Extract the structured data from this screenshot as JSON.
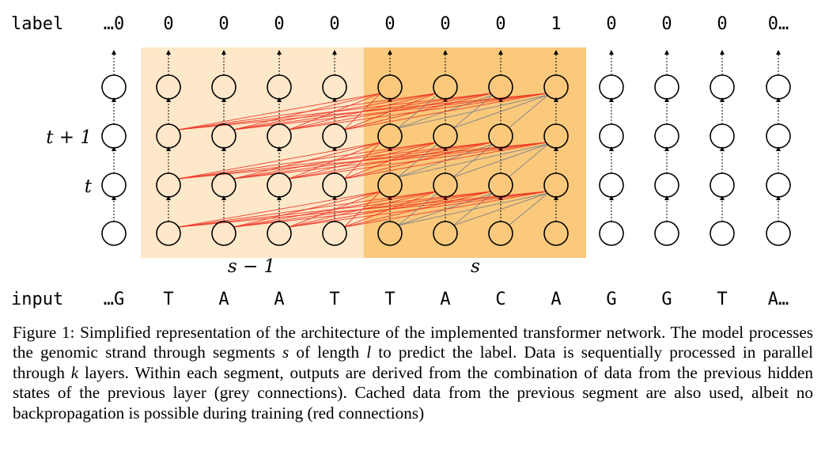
{
  "diagram": {
    "label_row_title": "label",
    "input_row_title": "input",
    "labels": [
      "…0",
      "0",
      "0",
      "0",
      "0",
      "0",
      "0",
      "0",
      "1",
      "0",
      "0",
      "0",
      "0…"
    ],
    "inputs": [
      "…G",
      "T",
      "A",
      "A",
      "T",
      "T",
      "A",
      "C",
      "A",
      "G",
      "G",
      "T",
      "A…"
    ],
    "layer_label_t1": "t + 1",
    "layer_label_t": "t",
    "segment_prev_label": "s − 1",
    "segment_curr_label": "s",
    "colors": {
      "segment_prev_fill": "#fde8c9",
      "segment_curr_fill": "#fbc97c",
      "red_connection": "#ee3322",
      "grey_connection": "#888888"
    }
  },
  "caption": {
    "figure_label": "Figure 1:",
    "text_1": "Simplified representation of the architecture of the implemented transformer network. The model processes the genomic strand through segments",
    "var_s": "s",
    "text_2": "of length",
    "var_l": "l",
    "text_3": "to predict the label. Data is sequentially processed in parallel through",
    "var_k": "k",
    "text_4": "layers. Within each segment, outputs are derived from the combination of data from the previous hidden states of the previous layer (grey connections). Cached data from the previous segment are also used, albeit no backpropagation is possible during training (red connections)"
  }
}
